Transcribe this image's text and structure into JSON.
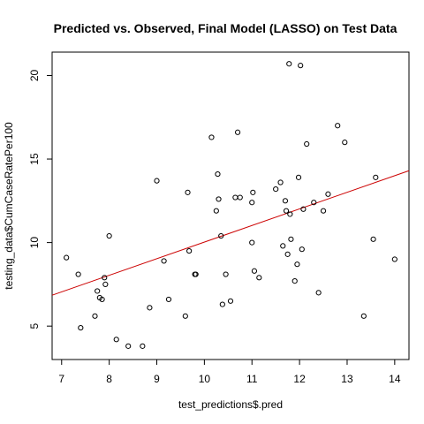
{
  "chart_data": {
    "type": "scatter",
    "title": "Predicted vs. Observed, Final Model (LASSO) on Test Data",
    "xlabel": "test_predictions$.pred",
    "ylabel": "testing_data$CumCaseRatePer100",
    "xlim": [
      6.8,
      14.3
    ],
    "ylim": [
      3.0,
      21.4
    ],
    "xticks": [
      7,
      8,
      9,
      10,
      11,
      12,
      13,
      14
    ],
    "yticks": [
      5,
      10,
      15,
      20
    ],
    "grid": false,
    "legend": "none",
    "point_color": "#000000",
    "line_color": "#cc0000",
    "fit_line": {
      "x": [
        6.8,
        14.3
      ],
      "y": [
        6.85,
        14.3
      ]
    },
    "points": [
      [
        7.1,
        9.1
      ],
      [
        7.35,
        8.1
      ],
      [
        7.4,
        4.9
      ],
      [
        7.7,
        5.6
      ],
      [
        7.75,
        7.1
      ],
      [
        7.8,
        6.7
      ],
      [
        7.85,
        6.6
      ],
      [
        7.9,
        7.9
      ],
      [
        7.92,
        7.5
      ],
      [
        8.0,
        10.4
      ],
      [
        8.15,
        4.2
      ],
      [
        8.4,
        3.8
      ],
      [
        8.7,
        3.8
      ],
      [
        8.85,
        6.1
      ],
      [
        9.0,
        13.7
      ],
      [
        9.15,
        8.9
      ],
      [
        9.25,
        6.6
      ],
      [
        9.6,
        5.6
      ],
      [
        9.65,
        13.0
      ],
      [
        9.68,
        9.5
      ],
      [
        9.8,
        8.1
      ],
      [
        9.82,
        8.1
      ],
      [
        10.15,
        16.3
      ],
      [
        10.25,
        11.9
      ],
      [
        10.28,
        14.1
      ],
      [
        10.3,
        12.6
      ],
      [
        10.35,
        10.4
      ],
      [
        10.38,
        6.3
      ],
      [
        10.45,
        8.1
      ],
      [
        10.55,
        6.5
      ],
      [
        10.65,
        12.7
      ],
      [
        10.7,
        16.6
      ],
      [
        10.75,
        12.7
      ],
      [
        11.0,
        12.4
      ],
      [
        11.02,
        13.0
      ],
      [
        11.0,
        10.0
      ],
      [
        11.05,
        8.3
      ],
      [
        11.15,
        7.9
      ],
      [
        11.5,
        13.2
      ],
      [
        11.6,
        13.6
      ],
      [
        11.65,
        9.8
      ],
      [
        11.7,
        12.5
      ],
      [
        11.72,
        11.9
      ],
      [
        11.75,
        9.3
      ],
      [
        11.78,
        20.7
      ],
      [
        11.8,
        11.7
      ],
      [
        11.82,
        10.2
      ],
      [
        11.9,
        7.7
      ],
      [
        11.95,
        8.7
      ],
      [
        11.98,
        13.9
      ],
      [
        12.02,
        20.6
      ],
      [
        12.05,
        9.6
      ],
      [
        12.08,
        12.0
      ],
      [
        12.15,
        15.9
      ],
      [
        12.3,
        12.4
      ],
      [
        12.4,
        7.0
      ],
      [
        12.5,
        11.9
      ],
      [
        12.6,
        12.9
      ],
      [
        12.8,
        17.0
      ],
      [
        12.95,
        16.0
      ],
      [
        13.35,
        5.6
      ],
      [
        13.55,
        10.2
      ],
      [
        13.6,
        13.9
      ],
      [
        14.0,
        9.0
      ]
    ]
  }
}
